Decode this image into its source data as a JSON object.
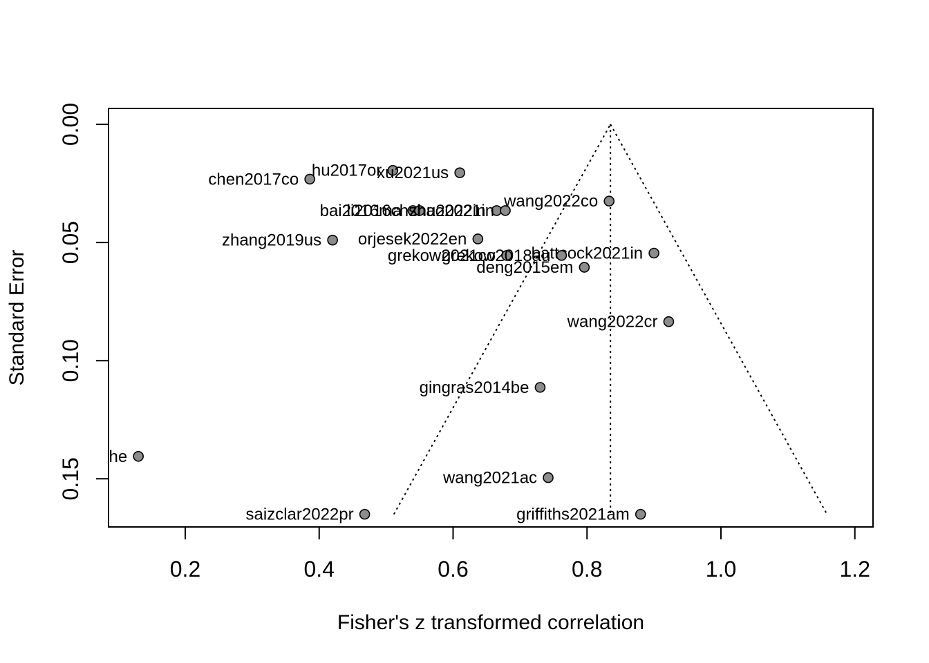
{
  "chart_data": {
    "type": "scatter",
    "subtype": "funnel",
    "title": "",
    "xlabel": "Fisher's z transformed correlation",
    "ylabel": "Standard Error",
    "xlim": [
      0.085,
      1.255
    ],
    "ylim": [
      0.0,
      0.1665
    ],
    "y_reversed": true,
    "grid": false,
    "x_ticks": [
      "0.2",
      "0.4",
      "0.6",
      "0.8",
      "1.0",
      "1.2"
    ],
    "y_ticks": [
      "0.00",
      "0.05",
      "0.10",
      "0.15"
    ],
    "x_tick_values": [
      0.2,
      0.4,
      0.6,
      0.8,
      1.0,
      1.2
    ],
    "y_tick_values": [
      0.0,
      0.05,
      0.1,
      0.15
    ],
    "funnel": {
      "center": 0.835,
      "se_max": 0.165,
      "z": 1.96,
      "line_style": "dotted"
    },
    "point_color": "#8c8c8c",
    "points": [
      {
        "label": "hu2017or",
        "x": 0.51,
        "y": 0.0195
      },
      {
        "label": "xu2021us",
        "x": 0.61,
        "y": 0.0205
      },
      {
        "label": "chen2017co",
        "x": 0.386,
        "y": 0.0232
      },
      {
        "label": "wang2022co",
        "x": 0.833,
        "y": 0.0325
      },
      {
        "label": "bai2016ma",
        "x": 0.54,
        "y": 0.0365
      },
      {
        "label": "li2016ch",
        "x": 0.55,
        "y": 0.0365
      },
      {
        "label": "zhu2022in",
        "x": 0.665,
        "y": 0.0365
      },
      {
        "label": "shao2021in",
        "x": 0.678,
        "y": 0.0365
      },
      {
        "label": "orjesek2022en",
        "x": 0.637,
        "y": 0.0485
      },
      {
        "label": "zhang2019us",
        "x": 0.42,
        "y": 0.049
      },
      {
        "label": "battcock2021in",
        "x": 0.9,
        "y": 0.0545
      },
      {
        "label": "grekow2021co",
        "x": 0.68,
        "y": 0.0555
      },
      {
        "label": "grekow2018au",
        "x": 0.762,
        "y": 0.0555
      },
      {
        "label": "deng2015em",
        "x": 0.796,
        "y": 0.0605
      },
      {
        "label": "wang2022cr",
        "x": 0.922,
        "y": 0.0835
      },
      {
        "label": "gingras2014be",
        "x": 0.73,
        "y": 0.1113
      },
      {
        "label": "he",
        "x": 0.13,
        "y": 0.1405
      },
      {
        "label": "wang2021ac",
        "x": 0.742,
        "y": 0.1495
      },
      {
        "label": "saizclar2022pr",
        "x": 0.468,
        "y": 0.165
      },
      {
        "label": "griffiths2021am",
        "x": 0.88,
        "y": 0.165
      }
    ]
  }
}
